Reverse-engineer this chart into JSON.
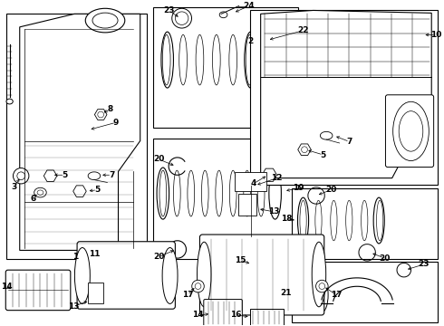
{
  "background_color": "#ffffff",
  "line_color": "#000000",
  "text_color": "#000000",
  "fig_width": 4.9,
  "fig_height": 3.6,
  "dpi": 100
}
